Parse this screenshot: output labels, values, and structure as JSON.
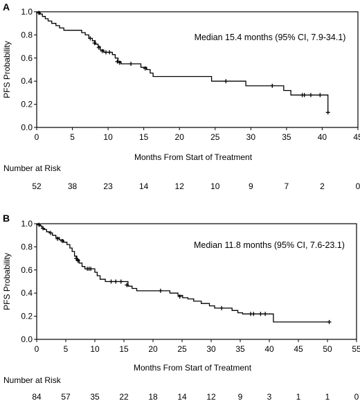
{
  "chart_data": [
    {
      "type": "line",
      "panel": "A",
      "ylabel": "PFS Probability",
      "xlabel": "Months From Start of Treatment",
      "xlim": [
        0,
        45
      ],
      "ylim": [
        0,
        1
      ],
      "xticks": [
        "0",
        "5",
        "10",
        "15",
        "20",
        "25",
        "30",
        "35",
        "40",
        "45"
      ],
      "yticks": [
        "0.0",
        "0.2",
        "0.4",
        "0.6",
        "0.8",
        "1.0"
      ],
      "annotation": "Median 15.4 months (95% CI, 7.9-34.1)",
      "risk_title": "Number at Risk",
      "risk_times": [
        0,
        5,
        10,
        15,
        20,
        25,
        30,
        35,
        40,
        45
      ],
      "risk_values": [
        "52",
        "38",
        "23",
        "14",
        "12",
        "10",
        "9",
        "7",
        "2",
        "0"
      ],
      "curve": [
        [
          0,
          1.0
        ],
        [
          0.4,
          0.98
        ],
        [
          0.8,
          0.96
        ],
        [
          1.2,
          0.94
        ],
        [
          1.6,
          0.92
        ],
        [
          2.1,
          0.9
        ],
        [
          2.7,
          0.88
        ],
        [
          3.2,
          0.86
        ],
        [
          3.8,
          0.84
        ],
        [
          5.5,
          0.84
        ],
        [
          6.3,
          0.82
        ],
        [
          6.8,
          0.8
        ],
        [
          7.3,
          0.77
        ],
        [
          7.8,
          0.75
        ],
        [
          8.2,
          0.72
        ],
        [
          8.6,
          0.7
        ],
        [
          8.9,
          0.67
        ],
        [
          9.4,
          0.65
        ],
        [
          10.3,
          0.65
        ],
        [
          10.6,
          0.63
        ],
        [
          11.0,
          0.6
        ],
        [
          11.4,
          0.57
        ],
        [
          11.8,
          0.55
        ],
        [
          14.3,
          0.55
        ],
        [
          14.6,
          0.52
        ],
        [
          15.4,
          0.5
        ],
        [
          15.9,
          0.47
        ],
        [
          16.3,
          0.44
        ],
        [
          24.1,
          0.44
        ],
        [
          24.5,
          0.4
        ],
        [
          28.8,
          0.4
        ],
        [
          29.3,
          0.36
        ],
        [
          34.1,
          0.36
        ],
        [
          34.6,
          0.32
        ],
        [
          35.6,
          0.28
        ],
        [
          40.8,
          0.28
        ],
        [
          40.8,
          0.13
        ]
      ],
      "censor": [
        [
          0.3,
          0.99
        ],
        [
          7.5,
          0.77
        ],
        [
          8.1,
          0.73
        ],
        [
          8.7,
          0.69
        ],
        [
          9.2,
          0.66
        ],
        [
          9.7,
          0.65
        ],
        [
          10.2,
          0.65
        ],
        [
          11.3,
          0.57
        ],
        [
          11.6,
          0.56
        ],
        [
          13.2,
          0.55
        ],
        [
          15.2,
          0.51
        ],
        [
          26.5,
          0.4
        ],
        [
          33.0,
          0.36
        ],
        [
          37.2,
          0.28
        ],
        [
          37.5,
          0.28
        ],
        [
          38.4,
          0.28
        ],
        [
          39.7,
          0.28
        ],
        [
          40.8,
          0.13
        ]
      ]
    },
    {
      "type": "line",
      "panel": "B",
      "ylabel": "PFS Probability",
      "xlabel": "Months From Start of Treatment",
      "xlim": [
        0,
        55
      ],
      "ylim": [
        0,
        1
      ],
      "xticks": [
        "0",
        "5",
        "10",
        "15",
        "20",
        "25",
        "30",
        "35",
        "40",
        "45",
        "50",
        "55"
      ],
      "yticks": [
        "0.0",
        "0.2",
        "0.4",
        "0.6",
        "0.8",
        "1.0"
      ],
      "annotation": "Median 11.8 months (95% CI, 7.6-23.1)",
      "risk_title": "Number at Risk",
      "risk_times": [
        0,
        5,
        10,
        15,
        20,
        25,
        30,
        35,
        40,
        45,
        50,
        55
      ],
      "risk_values": [
        "84",
        "57",
        "35",
        "22",
        "18",
        "14",
        "12",
        "9",
        "3",
        "1",
        "1",
        "0"
      ],
      "curve": [
        [
          0,
          1.0
        ],
        [
          0.3,
          0.99
        ],
        [
          0.6,
          0.98
        ],
        [
          0.9,
          0.96
        ],
        [
          1.3,
          0.95
        ],
        [
          1.7,
          0.93
        ],
        [
          2.2,
          0.92
        ],
        [
          2.7,
          0.9
        ],
        [
          3.3,
          0.88
        ],
        [
          3.9,
          0.86
        ],
        [
          4.6,
          0.84
        ],
        [
          5.2,
          0.82
        ],
        [
          5.7,
          0.79
        ],
        [
          6.1,
          0.76
        ],
        [
          6.5,
          0.72
        ],
        [
          6.9,
          0.69
        ],
        [
          7.3,
          0.66
        ],
        [
          7.8,
          0.63
        ],
        [
          8.3,
          0.61
        ],
        [
          9.6,
          0.61
        ],
        [
          10.0,
          0.58
        ],
        [
          10.4,
          0.55
        ],
        [
          10.9,
          0.52
        ],
        [
          11.8,
          0.5
        ],
        [
          15.2,
          0.5
        ],
        [
          15.7,
          0.46
        ],
        [
          16.4,
          0.44
        ],
        [
          17.2,
          0.42
        ],
        [
          22.4,
          0.42
        ],
        [
          22.9,
          0.4
        ],
        [
          24.3,
          0.38
        ],
        [
          25.1,
          0.36
        ],
        [
          26.0,
          0.35
        ],
        [
          27.0,
          0.33
        ],
        [
          28.3,
          0.31
        ],
        [
          29.7,
          0.29
        ],
        [
          30.6,
          0.27
        ],
        [
          33.0,
          0.27
        ],
        [
          33.6,
          0.25
        ],
        [
          34.6,
          0.23
        ],
        [
          35.4,
          0.22
        ],
        [
          40.7,
          0.22
        ],
        [
          40.7,
          0.15
        ],
        [
          50.3,
          0.15
        ]
      ],
      "censor": [
        [
          0.4,
          0.99
        ],
        [
          1.1,
          0.96
        ],
        [
          2.4,
          0.92
        ],
        [
          3.6,
          0.87
        ],
        [
          4.4,
          0.85
        ],
        [
          6.8,
          0.7
        ],
        [
          7.1,
          0.68
        ],
        [
          8.7,
          0.61
        ],
        [
          9.0,
          0.61
        ],
        [
          9.3,
          0.61
        ],
        [
          12.8,
          0.5
        ],
        [
          13.6,
          0.5
        ],
        [
          14.5,
          0.5
        ],
        [
          15.5,
          0.47
        ],
        [
          21.3,
          0.42
        ],
        [
          24.6,
          0.37
        ],
        [
          31.8,
          0.27
        ],
        [
          36.8,
          0.22
        ],
        [
          37.3,
          0.22
        ],
        [
          38.5,
          0.22
        ],
        [
          39.3,
          0.22
        ],
        [
          50.3,
          0.15
        ]
      ]
    }
  ]
}
